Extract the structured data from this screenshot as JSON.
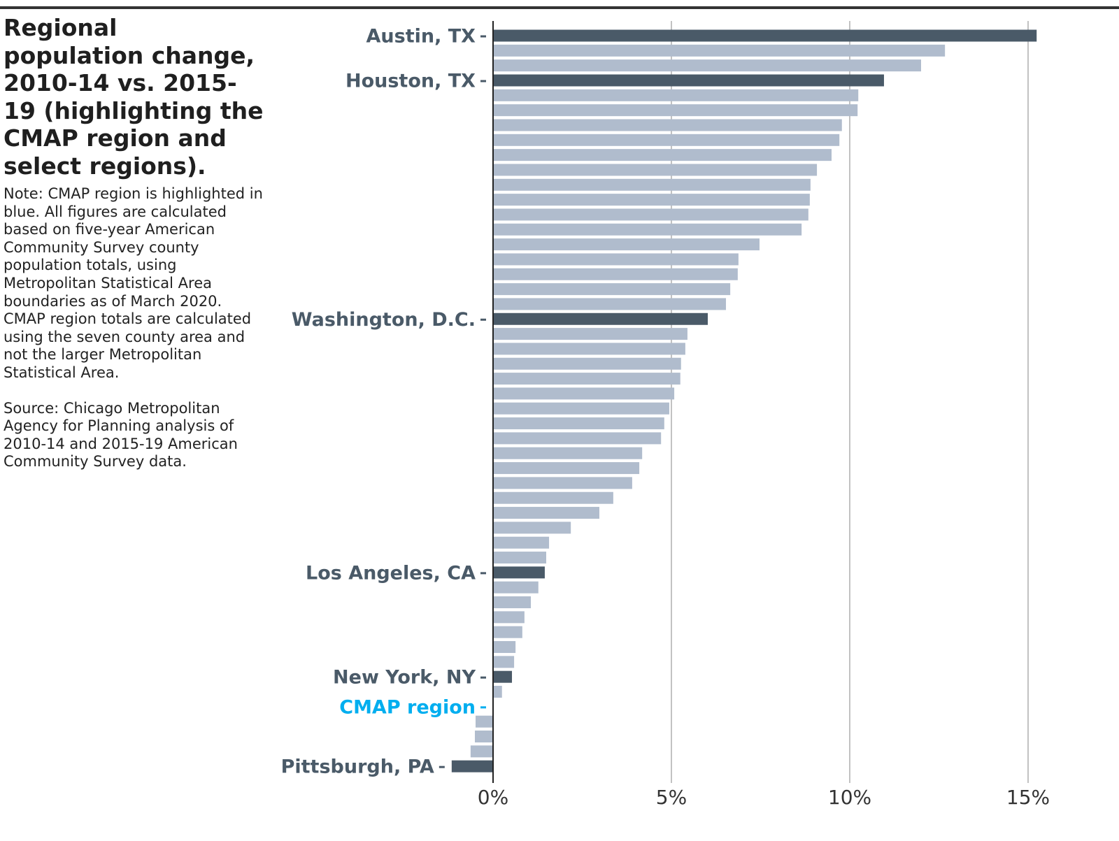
{
  "chart_data": {
    "type": "bar",
    "orientation": "horizontal",
    "title": "Regional population change, 2010-14 vs. 2015-19 (highlighting the CMAP region and select regions).",
    "note": "Note: CMAP region is highlighted in blue. All figures are calculated based on five-year American Community Survey county population totals, using Metropolitan Statistical Area boundaries as of March 2020. CMAP region totals are calculated using the seven county area and not the larger Metropolitan Statistical Area.",
    "source": "Source: Chicago Metropolitan Agency for Planning analysis of 2010-14 and 2015-19 American Community Survey data.",
    "categories": [
      "Austin, TX",
      null,
      null,
      "Houston, TX",
      null,
      null,
      null,
      null,
      null,
      null,
      null,
      null,
      null,
      null,
      null,
      null,
      null,
      null,
      null,
      "Washington, D.C.",
      null,
      null,
      null,
      null,
      null,
      null,
      null,
      null,
      null,
      null,
      null,
      null,
      null,
      null,
      null,
      null,
      "Los Angeles, CA",
      null,
      null,
      null,
      null,
      null,
      null,
      "New York, NY",
      null,
      "CMAP region",
      null,
      null,
      null,
      "Pittsburgh, PA"
    ],
    "values": [
      15.24,
      12.67,
      12.0,
      10.96,
      10.24,
      10.22,
      9.78,
      9.71,
      9.49,
      9.08,
      8.9,
      8.88,
      8.84,
      8.65,
      7.47,
      6.88,
      6.86,
      6.65,
      6.53,
      6.02,
      5.45,
      5.39,
      5.27,
      5.25,
      5.08,
      4.94,
      4.8,
      4.71,
      4.18,
      4.1,
      3.9,
      3.37,
      2.98,
      2.18,
      1.57,
      1.49,
      1.45,
      1.27,
      1.06,
      0.88,
      0.82,
      0.63,
      0.59,
      0.53,
      0.25,
      0.02,
      -0.49,
      -0.51,
      -0.63,
      -1.16
    ],
    "colors": [
      "#4a5a68",
      "#b0bccd",
      "#b0bccd",
      "#4a5a68",
      "#b0bccd",
      "#b0bccd",
      "#b0bccd",
      "#b0bccd",
      "#b0bccd",
      "#b0bccd",
      "#b0bccd",
      "#b0bccd",
      "#b0bccd",
      "#b0bccd",
      "#b0bccd",
      "#b0bccd",
      "#b0bccd",
      "#b0bccd",
      "#b0bccd",
      "#4a5a68",
      "#b0bccd",
      "#b0bccd",
      "#b0bccd",
      "#b0bccd",
      "#b0bccd",
      "#b0bccd",
      "#b0bccd",
      "#b0bccd",
      "#b0bccd",
      "#b0bccd",
      "#b0bccd",
      "#b0bccd",
      "#b0bccd",
      "#b0bccd",
      "#b0bccd",
      "#b0bccd",
      "#4a5a68",
      "#b0bccd",
      "#b0bccd",
      "#b0bccd",
      "#b0bccd",
      "#b0bccd",
      "#b0bccd",
      "#4a5a68",
      "#b0bccd",
      "#00aeef",
      "#b0bccd",
      "#b0bccd",
      "#b0bccd",
      "#4a5a68"
    ],
    "xlim": [
      -1.2,
      16
    ],
    "xticks": [
      {
        "value": 0,
        "label": "0%"
      },
      {
        "value": 5,
        "label": "5%"
      },
      {
        "value": 10,
        "label": "10%"
      },
      {
        "value": 15,
        "label": "15%"
      }
    ],
    "grid": true
  }
}
